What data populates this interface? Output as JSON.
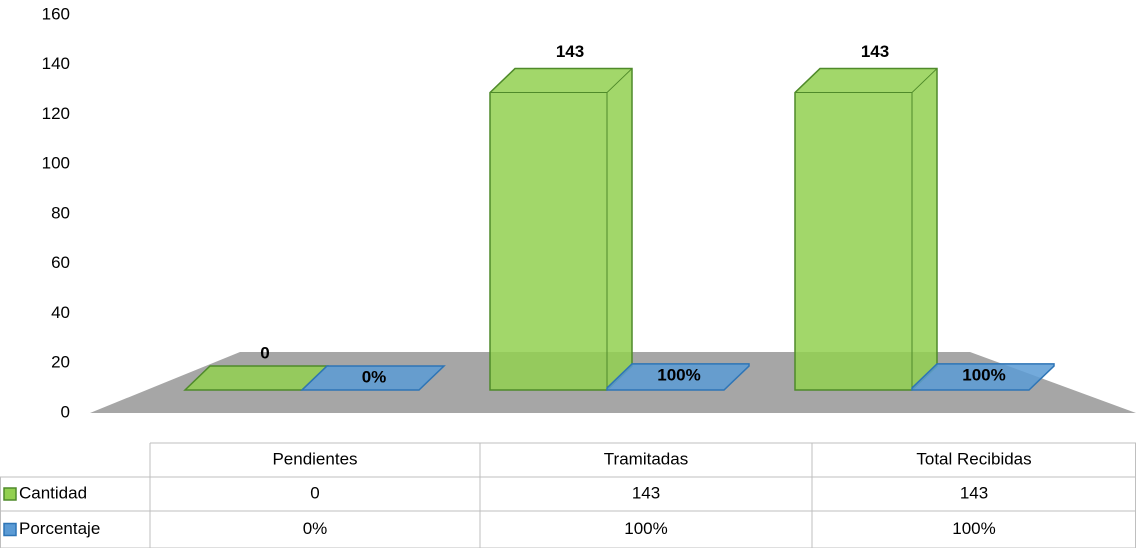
{
  "chart_data": {
    "type": "bar3d",
    "categories": [
      "Pendientes",
      "Tramitadas",
      "Total Recibidas"
    ],
    "series": [
      {
        "name": "Cantidad",
        "color": "#92d050",
        "values": [
          0,
          143,
          143
        ]
      },
      {
        "name": "Porcentaje",
        "color": "#5b9bd5",
        "values": [
          0,
          1,
          1
        ],
        "value_labels": [
          "0%",
          "100%",
          "100%"
        ]
      }
    ],
    "ylim": [
      0,
      160
    ],
    "yticks": [
      0,
      20,
      40,
      60,
      80,
      100,
      120,
      140,
      160
    ],
    "data_table": true
  }
}
